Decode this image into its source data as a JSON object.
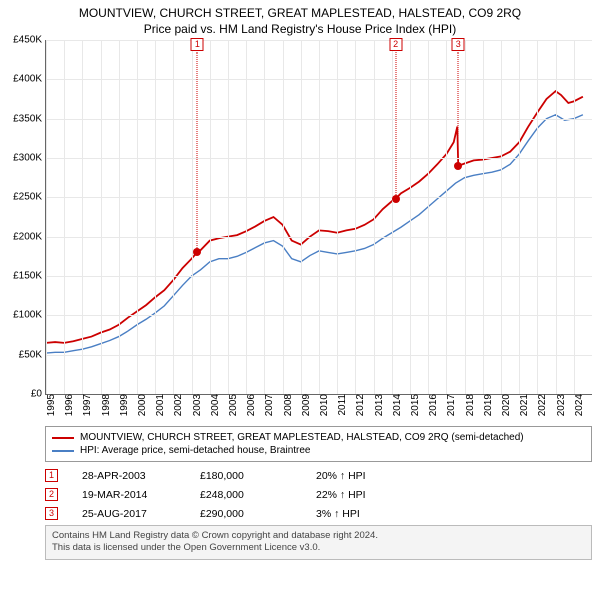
{
  "title": "MOUNTVIEW, CHURCH STREET, GREAT MAPLESTEAD, HALSTEAD, CO9 2RQ",
  "subtitle": "Price paid vs. HM Land Registry's House Price Index (HPI)",
  "chart": {
    "type": "line",
    "ylim": [
      0,
      450000
    ],
    "ytick_step": 50000,
    "yticks": [
      "£0",
      "£50K",
      "£100K",
      "£150K",
      "£200K",
      "£250K",
      "£300K",
      "£350K",
      "£400K",
      "£450K"
    ],
    "xlim": [
      1995,
      2025
    ],
    "xticks": [
      1995,
      1996,
      1997,
      1998,
      1999,
      2000,
      2001,
      2002,
      2003,
      2004,
      2005,
      2006,
      2007,
      2008,
      2009,
      2010,
      2011,
      2012,
      2013,
      2014,
      2015,
      2016,
      2017,
      2018,
      2019,
      2020,
      2021,
      2022,
      2023,
      2024
    ],
    "background_color": "#ffffff",
    "grid_color": "#e8e8e8",
    "series": [
      {
        "id": "property",
        "label": "MOUNTVIEW, CHURCH STREET, GREAT MAPLESTEAD, HALSTEAD, CO9 2RQ (semi-detached)",
        "color": "#cc0000",
        "width": 1.8,
        "points": [
          [
            1995,
            65000
          ],
          [
            1995.5,
            66000
          ],
          [
            1996,
            65000
          ],
          [
            1996.5,
            67000
          ],
          [
            1997,
            70000
          ],
          [
            1997.5,
            73000
          ],
          [
            1998,
            78000
          ],
          [
            1998.5,
            82000
          ],
          [
            1999,
            88000
          ],
          [
            1999.5,
            97000
          ],
          [
            2000,
            105000
          ],
          [
            2000.5,
            113000
          ],
          [
            2001,
            123000
          ],
          [
            2001.5,
            132000
          ],
          [
            2002,
            145000
          ],
          [
            2002.5,
            160000
          ],
          [
            2003,
            172000
          ],
          [
            2003.3,
            180000
          ],
          [
            2003.5,
            183000
          ],
          [
            2004,
            195000
          ],
          [
            2004.5,
            198000
          ],
          [
            2005,
            200000
          ],
          [
            2005.5,
            202000
          ],
          [
            2006,
            207000
          ],
          [
            2006.5,
            213000
          ],
          [
            2007,
            220000
          ],
          [
            2007.5,
            225000
          ],
          [
            2008,
            215000
          ],
          [
            2008.5,
            195000
          ],
          [
            2009,
            190000
          ],
          [
            2009.5,
            200000
          ],
          [
            2010,
            208000
          ],
          [
            2010.5,
            207000
          ],
          [
            2011,
            205000
          ],
          [
            2011.5,
            208000
          ],
          [
            2012,
            210000
          ],
          [
            2012.5,
            215000
          ],
          [
            2013,
            222000
          ],
          [
            2013.5,
            235000
          ],
          [
            2014,
            245000
          ],
          [
            2014.2,
            248000
          ],
          [
            2014.5,
            255000
          ],
          [
            2015,
            262000
          ],
          [
            2015.5,
            270000
          ],
          [
            2016,
            280000
          ],
          [
            2016.5,
            292000
          ],
          [
            2017,
            305000
          ],
          [
            2017.4,
            320000
          ],
          [
            2017.6,
            340000
          ],
          [
            2017.65,
            290000
          ],
          [
            2018,
            293000
          ],
          [
            2018.5,
            297000
          ],
          [
            2019,
            298000
          ],
          [
            2019.5,
            300000
          ],
          [
            2020,
            302000
          ],
          [
            2020.5,
            308000
          ],
          [
            2021,
            320000
          ],
          [
            2021.5,
            340000
          ],
          [
            2022,
            358000
          ],
          [
            2022.5,
            375000
          ],
          [
            2023,
            385000
          ],
          [
            2023.3,
            380000
          ],
          [
            2023.7,
            370000
          ],
          [
            2024,
            372000
          ],
          [
            2024.5,
            378000
          ]
        ]
      },
      {
        "id": "hpi",
        "label": "HPI: Average price, semi-detached house, Braintree",
        "color": "#4a7fc4",
        "width": 1.4,
        "points": [
          [
            1995,
            52000
          ],
          [
            1995.5,
            53000
          ],
          [
            1996,
            53000
          ],
          [
            1996.5,
            55000
          ],
          [
            1997,
            57000
          ],
          [
            1997.5,
            60000
          ],
          [
            1998,
            64000
          ],
          [
            1998.5,
            68000
          ],
          [
            1999,
            73000
          ],
          [
            1999.5,
            80000
          ],
          [
            2000,
            88000
          ],
          [
            2000.5,
            95000
          ],
          [
            2001,
            103000
          ],
          [
            2001.5,
            112000
          ],
          [
            2002,
            125000
          ],
          [
            2002.5,
            138000
          ],
          [
            2003,
            150000
          ],
          [
            2003.5,
            158000
          ],
          [
            2004,
            168000
          ],
          [
            2004.5,
            172000
          ],
          [
            2005,
            172000
          ],
          [
            2005.5,
            175000
          ],
          [
            2006,
            180000
          ],
          [
            2006.5,
            186000
          ],
          [
            2007,
            192000
          ],
          [
            2007.5,
            195000
          ],
          [
            2008,
            188000
          ],
          [
            2008.5,
            172000
          ],
          [
            2009,
            168000
          ],
          [
            2009.5,
            176000
          ],
          [
            2010,
            182000
          ],
          [
            2010.5,
            180000
          ],
          [
            2011,
            178000
          ],
          [
            2011.5,
            180000
          ],
          [
            2012,
            182000
          ],
          [
            2012.5,
            185000
          ],
          [
            2013,
            190000
          ],
          [
            2013.5,
            198000
          ],
          [
            2014,
            205000
          ],
          [
            2014.5,
            212000
          ],
          [
            2015,
            220000
          ],
          [
            2015.5,
            228000
          ],
          [
            2016,
            238000
          ],
          [
            2016.5,
            248000
          ],
          [
            2017,
            258000
          ],
          [
            2017.5,
            268000
          ],
          [
            2018,
            275000
          ],
          [
            2018.5,
            278000
          ],
          [
            2019,
            280000
          ],
          [
            2019.5,
            282000
          ],
          [
            2020,
            285000
          ],
          [
            2020.5,
            292000
          ],
          [
            2021,
            305000
          ],
          [
            2021.5,
            322000
          ],
          [
            2022,
            338000
          ],
          [
            2022.5,
            350000
          ],
          [
            2023,
            355000
          ],
          [
            2023.5,
            348000
          ],
          [
            2024,
            350000
          ],
          [
            2024.5,
            355000
          ]
        ]
      }
    ],
    "markers": [
      {
        "n": "1",
        "year": 2003.32,
        "value": 180000
      },
      {
        "n": "2",
        "year": 2014.21,
        "value": 248000
      },
      {
        "n": "3",
        "year": 2017.65,
        "value": 290000
      }
    ]
  },
  "legend": {
    "items": [
      {
        "color": "#cc0000",
        "label": "MOUNTVIEW, CHURCH STREET, GREAT MAPLESTEAD, HALSTEAD, CO9 2RQ (semi-detached)"
      },
      {
        "color": "#4a7fc4",
        "label": "HPI: Average price, semi-detached house, Braintree"
      }
    ]
  },
  "sales": [
    {
      "n": "1",
      "date": "28-APR-2003",
      "price": "£180,000",
      "diff": "20% ↑ HPI"
    },
    {
      "n": "2",
      "date": "19-MAR-2014",
      "price": "£248,000",
      "diff": "22% ↑ HPI"
    },
    {
      "n": "3",
      "date": "25-AUG-2017",
      "price": "£290,000",
      "diff": "3% ↑ HPI"
    }
  ],
  "footer": {
    "line1": "Contains HM Land Registry data © Crown copyright and database right 2024.",
    "line2": "This data is licensed under the Open Government Licence v3.0."
  }
}
